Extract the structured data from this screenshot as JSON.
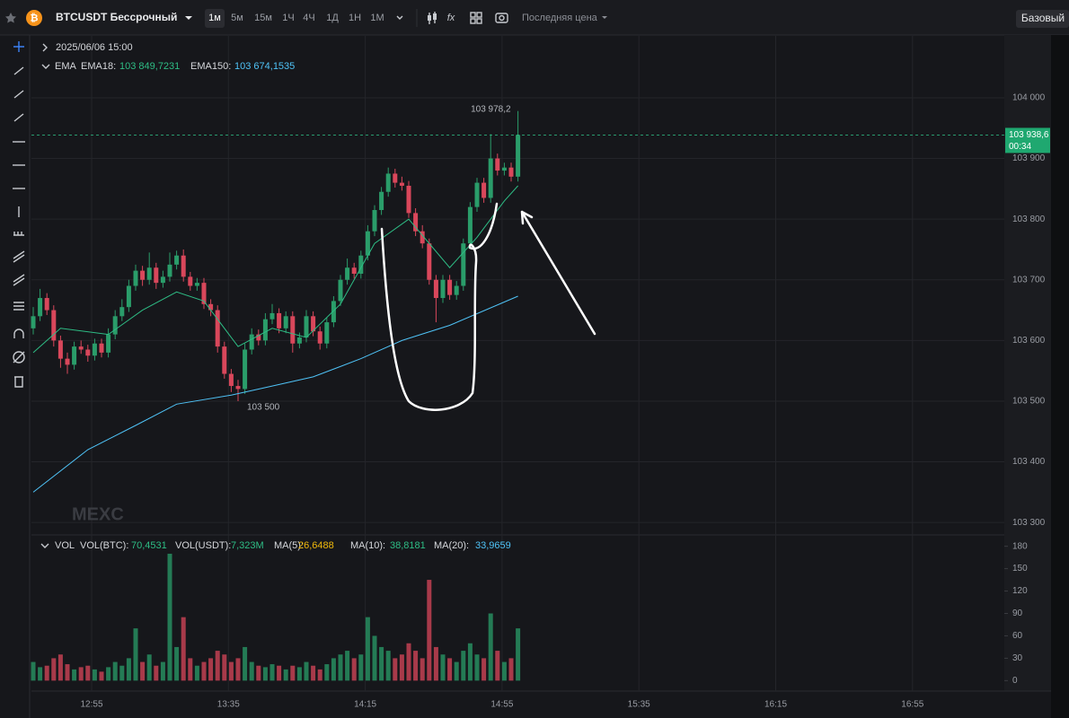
{
  "toolbar": {
    "symbol": "BTCUSDT Бессрочный",
    "intervals": [
      "1м",
      "5м",
      "15м",
      "1Ч",
      "4Ч",
      "1Д",
      "1Н",
      "1М"
    ],
    "price_type": "Последняя цена",
    "mode": "Базовый"
  },
  "legend": {
    "date": "2025/06/06 15:00",
    "label": "EMA",
    "items": [
      {
        "name": "EMA18:",
        "value": "103 849,7231",
        "color": "#2ebd85"
      },
      {
        "name": "EMA150:",
        "value": "103 674,1535",
        "color": "#4fc3f7"
      }
    ]
  },
  "volume_legend": {
    "label": "VOL",
    "items": [
      {
        "name": "VOL(BTC):",
        "value": "70,4531",
        "color": "#2ebd85"
      },
      {
        "name": "VOL(USDT):",
        "value": "7,323M",
        "color": "#2ebd85"
      },
      {
        "name": "MA(5):",
        "value": "26,6488",
        "color": "#f0b90b"
      },
      {
        "name": "MA(10):",
        "value": "38,8181",
        "color": "#2ebd85"
      },
      {
        "name": "MA(20):",
        "value": "33,9659",
        "color": "#4fc3f7"
      }
    ]
  },
  "watermark": "MEXC",
  "chart_data": {
    "type": "candlestick",
    "up_color": "#2a9d6a",
    "down_color": "#d9475b",
    "candles": [
      [
        103620,
        103655,
        103610,
        103640
      ],
      [
        103640,
        103685,
        103632,
        103670
      ],
      [
        103670,
        103678,
        103642,
        103650
      ],
      [
        103650,
        103658,
        103590,
        103600
      ],
      [
        103600,
        103608,
        103555,
        103570
      ],
      [
        103570,
        103580,
        103545,
        103560
      ],
      [
        103560,
        103598,
        103552,
        103590
      ],
      [
        103590,
        103600,
        103578,
        103585
      ],
      [
        103585,
        103593,
        103565,
        103575
      ],
      [
        103575,
        103603,
        103567,
        103595
      ],
      [
        103595,
        103603,
        103572,
        103580
      ],
      [
        103580,
        103620,
        103572,
        103610
      ],
      [
        103610,
        103650,
        103602,
        103640
      ],
      [
        103640,
        103668,
        103632,
        103655
      ],
      [
        103655,
        103700,
        103647,
        103690
      ],
      [
        103690,
        103725,
        103682,
        103715
      ],
      [
        103715,
        103723,
        103690,
        103700
      ],
      [
        103700,
        103745,
        103692,
        103720
      ],
      [
        103720,
        103728,
        103685,
        103695
      ],
      [
        103695,
        103715,
        103687,
        103705
      ],
      [
        103705,
        103745,
        103697,
        103725
      ],
      [
        103725,
        103748,
        103717,
        103740
      ],
      [
        103740,
        103750,
        103697,
        103705
      ],
      [
        103705,
        103713,
        103682,
        103690
      ],
      [
        103690,
        103703,
        103682,
        103695
      ],
      [
        103695,
        103703,
        103652,
        103660
      ],
      [
        103660,
        103668,
        103640,
        103650
      ],
      [
        103650,
        103658,
        103580,
        103590
      ],
      [
        103590,
        103598,
        103537,
        103545
      ],
      [
        103545,
        103553,
        103515,
        103525
      ],
      [
        103525,
        103535,
        103500,
        103520
      ],
      [
        103520,
        103595,
        103512,
        103585
      ],
      [
        103585,
        103620,
        103577,
        103610
      ],
      [
        103610,
        103618,
        103592,
        103600
      ],
      [
        103600,
        103645,
        103592,
        103635
      ],
      [
        103635,
        103660,
        103627,
        103645
      ],
      [
        103645,
        103653,
        103612,
        103620
      ],
      [
        103620,
        103648,
        103612,
        103640
      ],
      [
        103640,
        103648,
        103580,
        103595
      ],
      [
        103595,
        103613,
        103587,
        103605
      ],
      [
        103605,
        103650,
        103597,
        103640
      ],
      [
        103640,
        103648,
        103607,
        103615
      ],
      [
        103615,
        103623,
        103585,
        103595
      ],
      [
        103595,
        103638,
        103587,
        103630
      ],
      [
        103630,
        103673,
        103622,
        103665
      ],
      [
        103665,
        103708,
        103657,
        103700
      ],
      [
        103700,
        103735,
        103692,
        103720
      ],
      [
        103720,
        103728,
        103702,
        103710
      ],
      [
        103710,
        103748,
        103702,
        103740
      ],
      [
        103740,
        103790,
        103732,
        103780
      ],
      [
        103780,
        103823,
        103772,
        103815
      ],
      [
        103815,
        103853,
        103807,
        103845
      ],
      [
        103845,
        103885,
        103837,
        103875
      ],
      [
        103875,
        103883,
        103852,
        103860
      ],
      [
        103860,
        103870,
        103847,
        103855
      ],
      [
        103855,
        103863,
        103802,
        103810
      ],
      [
        103810,
        103818,
        103772,
        103780
      ],
      [
        103780,
        103790,
        103752,
        103760
      ],
      [
        103760,
        103768,
        103692,
        103700
      ],
      [
        103700,
        103708,
        103630,
        103670
      ],
      [
        103670,
        103708,
        103662,
        103700
      ],
      [
        103700,
        103708,
        103667,
        103675
      ],
      [
        103675,
        103698,
        103667,
        103690
      ],
      [
        103690,
        103768,
        103682,
        103760
      ],
      [
        103760,
        103828,
        103752,
        103820
      ],
      [
        103820,
        103868,
        103812,
        103860
      ],
      [
        103860,
        103868,
        103827,
        103835
      ],
      [
        103835,
        103940,
        103827,
        103900
      ],
      [
        103900,
        103908,
        103872,
        103880
      ],
      [
        103880,
        103893,
        103872,
        103885
      ],
      [
        103885,
        103893,
        103862,
        103870
      ],
      [
        103870,
        103978.2,
        103862,
        103938.6
      ]
    ],
    "lines": [
      {
        "name": "EMA18",
        "color": "#2ebd85",
        "x": [
          0,
          4,
          11,
          16,
          21,
          25,
          30,
          35,
          40,
          45,
          50,
          55,
          61,
          65,
          69,
          71
        ],
        "values": [
          103580,
          103620,
          103610,
          103650,
          103680,
          103665,
          103590,
          103620,
          103605,
          103660,
          103760,
          103800,
          103720,
          103770,
          103830,
          103855
        ]
      },
      {
        "name": "EMA150",
        "color": "#4fc3f7",
        "x": [
          0,
          8,
          15,
          21,
          29,
          35,
          41,
          48,
          54,
          61,
          71
        ],
        "values": [
          103350,
          103420,
          103460,
          103495,
          103510,
          103525,
          103540,
          103570,
          103600,
          103625,
          103673
        ]
      }
    ],
    "ylim": [
      103281,
      104102
    ],
    "yticks": [
      {
        "value": 103300,
        "label": "103 300"
      },
      {
        "value": 103400,
        "label": "103 400"
      },
      {
        "value": 103500,
        "label": "103 500"
      },
      {
        "value": 103600,
        "label": "103 600"
      },
      {
        "value": 103700,
        "label": "103 700"
      },
      {
        "value": 103800,
        "label": "103 800"
      },
      {
        "value": 103900,
        "label": "103 900"
      },
      {
        "value": 104000,
        "label": "104 000"
      }
    ],
    "xticks": [
      "12:55",
      "13:35",
      "14:15",
      "14:55",
      "15:35",
      "16:15",
      "16:55"
    ],
    "grid": true,
    "high_label": {
      "value": 103978.2,
      "label": "103 978,2"
    },
    "low_label": {
      "value": 103500,
      "label": "103 500"
    },
    "last_price": {
      "value": 103938.6,
      "label": "103 938,6",
      "countdown": "00:34"
    },
    "volume": {
      "values": [
        25,
        18,
        20,
        30,
        35,
        22,
        15,
        18,
        20,
        15,
        12,
        18,
        25,
        20,
        30,
        70,
        25,
        35,
        20,
        25,
        170,
        45,
        85,
        30,
        20,
        25,
        30,
        40,
        35,
        25,
        30,
        45,
        25,
        20,
        18,
        22,
        20,
        15,
        20,
        18,
        25,
        20,
        15,
        22,
        30,
        35,
        40,
        30,
        35,
        85,
        60,
        45,
        40,
        30,
        35,
        50,
        40,
        30,
        135,
        45,
        35,
        30,
        25,
        40,
        50,
        35,
        30,
        90,
        40,
        25,
        30,
        70
      ],
      "ylim": [
        -14,
        194
      ],
      "yticks": [
        0,
        30,
        60,
        90,
        120,
        150,
        180
      ]
    }
  }
}
